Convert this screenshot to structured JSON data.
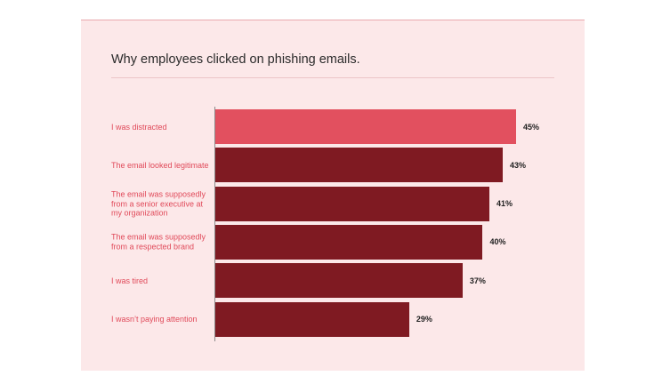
{
  "colors": {
    "highlight": "#e2505f",
    "bar": "#7f1a22",
    "label": "#e04a5a",
    "panel_bg": "#fce8e9"
  },
  "chart_data": {
    "type": "bar",
    "orientation": "horizontal",
    "title": "Why employees clicked on phishing emails.",
    "categories": [
      "I was distracted",
      "The email looked legitimate",
      "The email was supposedly from a senior executive at my organization",
      "The email was supposedly from a respected brand",
      "I was tired",
      "I wasn’t paying attention"
    ],
    "values": [
      45,
      43,
      41,
      40,
      37,
      29
    ],
    "value_labels": [
      "45%",
      "43%",
      "41%",
      "40%",
      "37%",
      "29%"
    ],
    "highlight_index": 0,
    "xlim": [
      0,
      45
    ],
    "grid": false,
    "legend": "none"
  }
}
